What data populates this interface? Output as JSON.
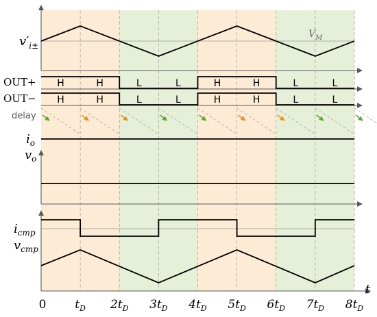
{
  "colors": {
    "orange_band": "#fdebd5",
    "green_band": "#e6f0d8",
    "orange_arrow": "#f0900f",
    "green_arrow": "#5aaa2d",
    "axis": "#5a5a5a",
    "grid": "#aaaaaa",
    "trace": "#000000"
  },
  "bands": [
    "orange",
    "orange",
    "green",
    "green",
    "orange",
    "orange",
    "green",
    "green"
  ],
  "labels": {
    "v_i": "v′",
    "v_i_sub": "i±",
    "vm": "V",
    "vm_sub": "M",
    "out_plus": "OUT+",
    "out_minus": "OUT−",
    "delay": "delay",
    "i_o": "i",
    "i_o_sub": "o",
    "v_o": "v",
    "v_o_sub": "o",
    "i_cmp": "i",
    "i_cmp_sub": "cmp",
    "v_cmp": "v",
    "v_cmp_sub": "cmp",
    "t_axis": "t"
  },
  "x_ticks": [
    {
      "pre": "0",
      "sub": ""
    },
    {
      "pre": "t",
      "sub": "D"
    },
    {
      "pre": "2t",
      "sub": "D"
    },
    {
      "pre": "3t",
      "sub": "D"
    },
    {
      "pre": "4t",
      "sub": "D"
    },
    {
      "pre": "5t",
      "sub": "D"
    },
    {
      "pre": "6t",
      "sub": "D"
    },
    {
      "pre": "7t",
      "sub": "D"
    },
    {
      "pre": "8t",
      "sub": "D"
    }
  ],
  "out_plus_states": [
    "H",
    "H",
    "L",
    "L",
    "H",
    "H",
    "L",
    "L"
  ],
  "out_minus_states": [
    "H",
    "H",
    "L",
    "L",
    "H",
    "H",
    "L",
    "L"
  ],
  "delay_arrows": [
    "green",
    "orange",
    "orange",
    "green",
    "green",
    "orange",
    "orange",
    "green",
    "green"
  ],
  "i_cmp_levels": [
    1,
    0,
    0,
    1,
    1,
    0,
    0,
    1
  ],
  "triangle_peaks": [
    {
      "t": 0,
      "level": "mid"
    },
    {
      "t": 1,
      "level": "max"
    },
    {
      "t": 3,
      "level": "min"
    },
    {
      "t": 5,
      "level": "max"
    },
    {
      "t": 7,
      "level": "min"
    },
    {
      "t": 8,
      "level": "mid"
    }
  ]
}
